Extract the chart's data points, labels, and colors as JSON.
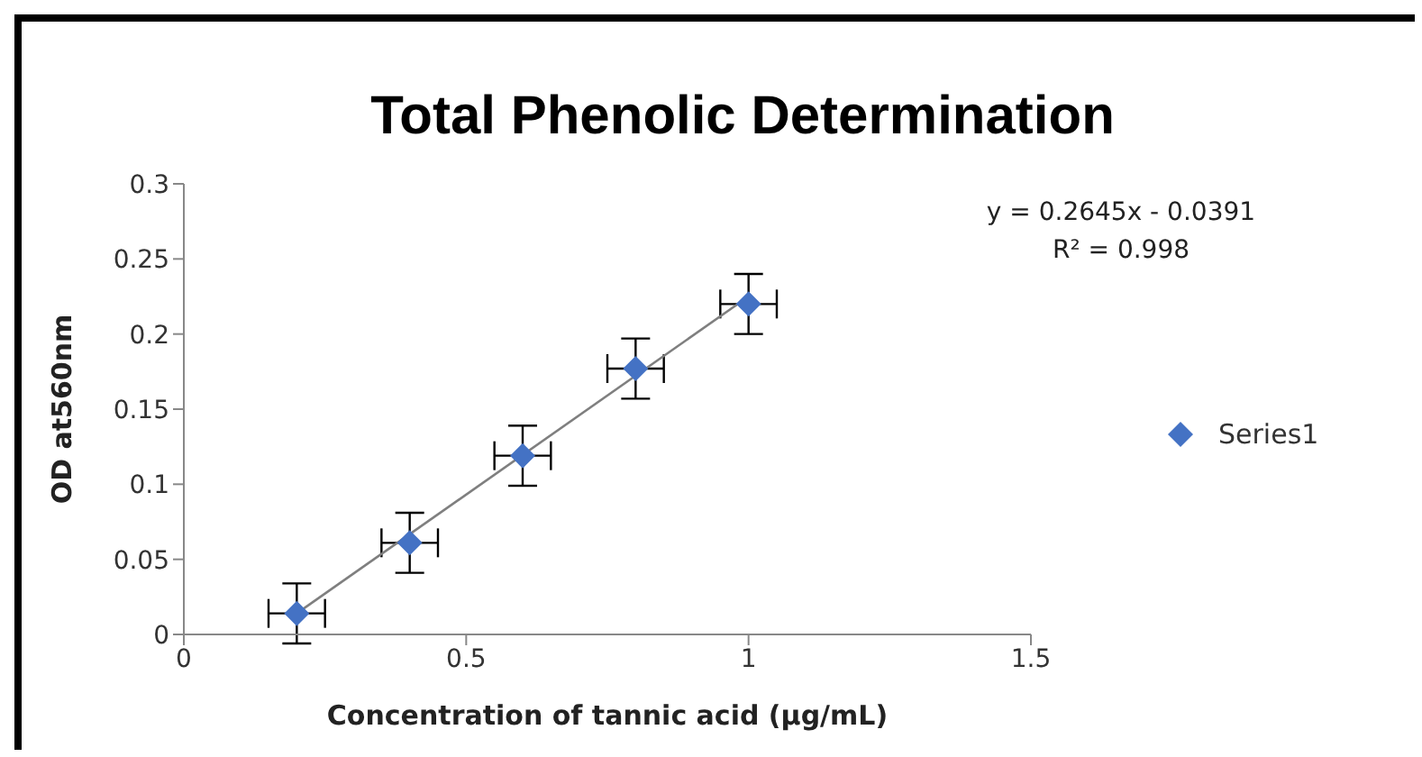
{
  "chart_data": {
    "type": "scatter",
    "title": "Total Phenolic Determination",
    "xlabel": "Concentration of tannic acid (μg/mL)",
    "ylabel": "OD  at560nm",
    "annotations": [
      "y = 0.2645x - 0.0391",
      "R² = 0.998"
    ],
    "series": [
      {
        "name": "Series1",
        "marker": "diamond",
        "color": "#4472c4",
        "x": [
          0.2,
          0.4,
          0.6,
          0.8,
          1.0
        ],
        "values": [
          0.014,
          0.061,
          0.119,
          0.177,
          0.22
        ],
        "errors": [
          0.02,
          0.02,
          0.02,
          0.02,
          0.02
        ],
        "xerrors": [
          0.05,
          0.05,
          0.05,
          0.05,
          0.05
        ]
      },
      {
        "type": "line",
        "marker": "none",
        "color": "#7f7f7f",
        "x": [
          0.2,
          1.0
        ],
        "values": [
          0.014,
          0.225
        ]
      }
    ],
    "xlim": [
      0,
      1.5
    ],
    "xticks": [
      0,
      0.5,
      1,
      1.5
    ],
    "ylim": [
      0,
      0.3
    ],
    "yticks": [
      0,
      0.05,
      0.1,
      0.15,
      0.2,
      0.25,
      0.3
    ],
    "grid": false,
    "legend": "right"
  }
}
